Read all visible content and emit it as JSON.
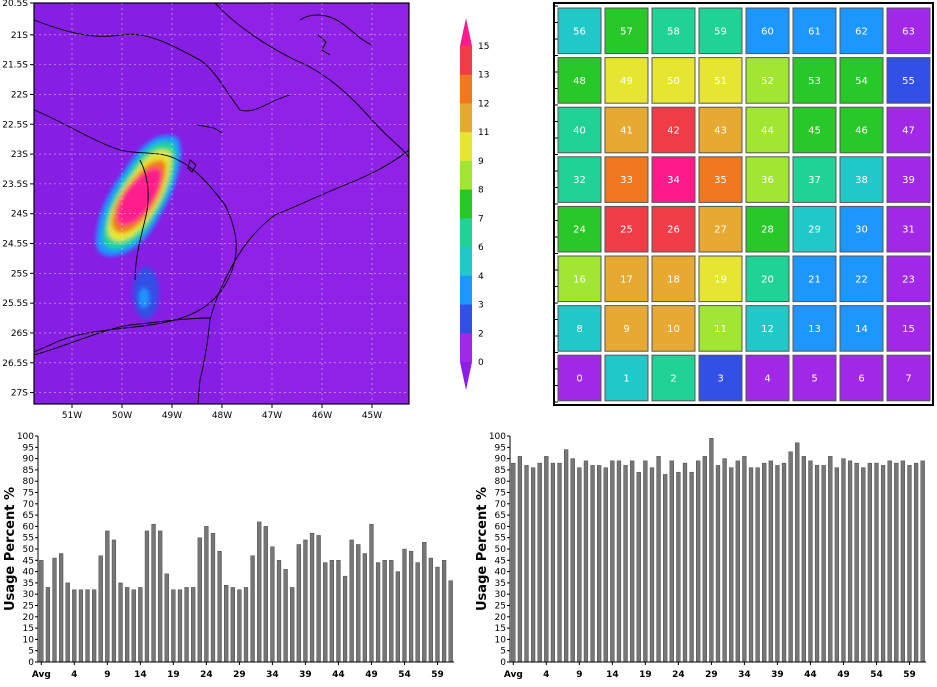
{
  "chart_data": [
    {
      "type": "heatmap",
      "title": "",
      "x_tick_labels": [
        "51W",
        "50W",
        "49W",
        "48W",
        "47W",
        "46W",
        "45W"
      ],
      "y_tick_labels": [
        "20.5S",
        "21S",
        "21.5S",
        "22S",
        "22.5S",
        "23S",
        "23.5S",
        "24S",
        "24.5S",
        "25S",
        "25.5S",
        "26S",
        "26.5S",
        "27S"
      ],
      "colorbar": {
        "labels": [
          "15",
          "13",
          "12",
          "11",
          "9",
          "8",
          "7",
          "6",
          "4",
          "3",
          "2",
          "0"
        ],
        "colors": [
          "#ff1a8c",
          "#f03c46",
          "#f0781e",
          "#e6aa32",
          "#e6e632",
          "#a0e632",
          "#28c828",
          "#20d296",
          "#20c8c8",
          "#1e96ff",
          "#3250e6",
          "#a028e6",
          "#8c1ee6"
        ]
      },
      "background_color": "#8c1ee6",
      "anomaly_regions": [
        {
          "lat": -23.75,
          "lon": -49.9,
          "peak": 15
        },
        {
          "lat": -25.6,
          "lon": -49.6,
          "peak": 4
        }
      ]
    },
    {
      "type": "table",
      "rows": 8,
      "cols": 8,
      "cells": [
        {
          "n": "56",
          "c": "#20c8c8"
        },
        {
          "n": "57",
          "c": "#28c828"
        },
        {
          "n": "58",
          "c": "#20d296"
        },
        {
          "n": "59",
          "c": "#20d296"
        },
        {
          "n": "60",
          "c": "#1e96ff"
        },
        {
          "n": "61",
          "c": "#1e96ff"
        },
        {
          "n": "62",
          "c": "#1e96ff"
        },
        {
          "n": "63",
          "c": "#a028e6"
        },
        {
          "n": "48",
          "c": "#28c828"
        },
        {
          "n": "49",
          "c": "#e6e632"
        },
        {
          "n": "50",
          "c": "#e6e632"
        },
        {
          "n": "51",
          "c": "#e6e632"
        },
        {
          "n": "52",
          "c": "#a0e632"
        },
        {
          "n": "53",
          "c": "#28c828"
        },
        {
          "n": "54",
          "c": "#28c828"
        },
        {
          "n": "55",
          "c": "#3250e6"
        },
        {
          "n": "40",
          "c": "#20d296"
        },
        {
          "n": "41",
          "c": "#e6aa32"
        },
        {
          "n": "42",
          "c": "#f03c46"
        },
        {
          "n": "43",
          "c": "#e6aa32"
        },
        {
          "n": "44",
          "c": "#a0e632"
        },
        {
          "n": "45",
          "c": "#28c828"
        },
        {
          "n": "46",
          "c": "#28c828"
        },
        {
          "n": "47",
          "c": "#a028e6"
        },
        {
          "n": "32",
          "c": "#20d296"
        },
        {
          "n": "33",
          "c": "#f0781e"
        },
        {
          "n": "34",
          "c": "#ff1a8c"
        },
        {
          "n": "35",
          "c": "#f0781e"
        },
        {
          "n": "36",
          "c": "#a0e632"
        },
        {
          "n": "37",
          "c": "#20d296"
        },
        {
          "n": "38",
          "c": "#20c8c8"
        },
        {
          "n": "39",
          "c": "#a028e6"
        },
        {
          "n": "24",
          "c": "#28c828"
        },
        {
          "n": "25",
          "c": "#f03c46"
        },
        {
          "n": "26",
          "c": "#f03c46"
        },
        {
          "n": "27",
          "c": "#e6aa32"
        },
        {
          "n": "28",
          "c": "#28c828"
        },
        {
          "n": "29",
          "c": "#20c8c8"
        },
        {
          "n": "30",
          "c": "#1e96ff"
        },
        {
          "n": "31",
          "c": "#a028e6"
        },
        {
          "n": "16",
          "c": "#a0e632"
        },
        {
          "n": "17",
          "c": "#e6aa32"
        },
        {
          "n": "18",
          "c": "#e6aa32"
        },
        {
          "n": "19",
          "c": "#e6e632"
        },
        {
          "n": "20",
          "c": "#20d296"
        },
        {
          "n": "21",
          "c": "#1e96ff"
        },
        {
          "n": "22",
          "c": "#1e96ff"
        },
        {
          "n": "23",
          "c": "#a028e6"
        },
        {
          "n": "8",
          "c": "#20c8c8"
        },
        {
          "n": "9",
          "c": "#e6aa32"
        },
        {
          "n": "10",
          "c": "#e6aa32"
        },
        {
          "n": "11",
          "c": "#a0e632"
        },
        {
          "n": "12",
          "c": "#20c8c8"
        },
        {
          "n": "13",
          "c": "#1e96ff"
        },
        {
          "n": "14",
          "c": "#1e96ff"
        },
        {
          "n": "15",
          "c": "#a028e6"
        },
        {
          "n": "0",
          "c": "#a028e6"
        },
        {
          "n": "1",
          "c": "#20c8c8"
        },
        {
          "n": "2",
          "c": "#20d296"
        },
        {
          "n": "3",
          "c": "#3250e6"
        },
        {
          "n": "4",
          "c": "#a028e6"
        },
        {
          "n": "5",
          "c": "#a028e6"
        },
        {
          "n": "6",
          "c": "#a028e6"
        },
        {
          "n": "7",
          "c": "#a028e6"
        }
      ]
    },
    {
      "type": "bar",
      "ylabel": "Usage Percent %",
      "ylim": [
        0,
        100
      ],
      "y_ticks": [
        "0",
        "5",
        "10",
        "15",
        "20",
        "25",
        "30",
        "35",
        "40",
        "45",
        "50",
        "55",
        "60",
        "65",
        "70",
        "75",
        "80",
        "85",
        "90",
        "95",
        "100"
      ],
      "x_tick_labels": [
        "Avg",
        "4",
        "9",
        "14",
        "19",
        "24",
        "29",
        "34",
        "39",
        "44",
        "49",
        "54",
        "59"
      ],
      "bar_color": "#777777",
      "values": [
        45,
        33,
        46,
        48,
        35,
        32,
        32,
        32,
        32,
        47,
        58,
        54,
        35,
        33,
        32,
        33,
        58,
        61,
        58,
        39,
        32,
        32,
        33,
        33,
        55,
        60,
        57,
        49,
        34,
        33,
        32,
        33,
        47,
        62,
        60,
        51,
        45,
        41,
        33,
        52,
        54,
        57,
        56,
        44,
        45,
        45,
        38,
        54,
        52,
        48,
        61,
        44,
        45,
        45,
        40,
        50,
        49,
        44,
        53,
        46,
        42,
        45,
        36
      ]
    },
    {
      "type": "bar",
      "ylabel": "Usage Percent %",
      "ylim": [
        0,
        100
      ],
      "y_ticks": [
        "0",
        "5",
        "10",
        "15",
        "20",
        "25",
        "30",
        "35",
        "40",
        "45",
        "50",
        "55",
        "60",
        "65",
        "70",
        "75",
        "80",
        "85",
        "90",
        "95",
        "100"
      ],
      "x_tick_labels": [
        "Avg",
        "4",
        "9",
        "14",
        "19",
        "24",
        "29",
        "34",
        "39",
        "44",
        "49",
        "54",
        "59"
      ],
      "bar_color": "#777777",
      "values": [
        88,
        91,
        87,
        86,
        88,
        91,
        88,
        88,
        94,
        90,
        86,
        89,
        87,
        87,
        86,
        89,
        89,
        87,
        89,
        84,
        89,
        86,
        91,
        83,
        89,
        84,
        88,
        84,
        89,
        91,
        99,
        87,
        90,
        86,
        89,
        91,
        86,
        86,
        88,
        89,
        87,
        88,
        93,
        97,
        91,
        89,
        87,
        87,
        91,
        86,
        90,
        89,
        88,
        86,
        88,
        88,
        87,
        89,
        88,
        89,
        87,
        88,
        89
      ]
    }
  ]
}
